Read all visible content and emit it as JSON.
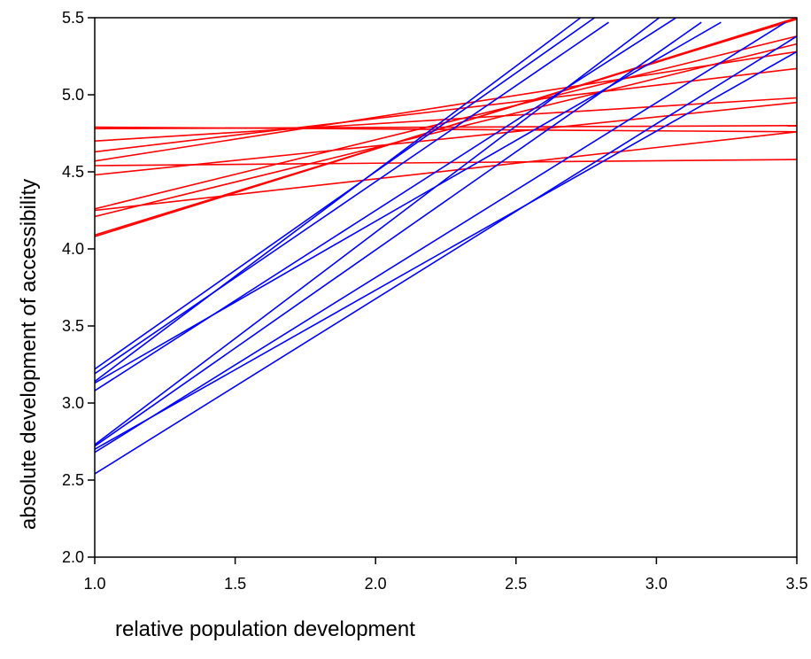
{
  "chart_data": {
    "type": "line",
    "title": "",
    "xlabel": "relative population development",
    "ylabel": "absolute development of accessibility",
    "xlim": [
      1.0,
      3.5
    ],
    "ylim": [
      2.0,
      5.5
    ],
    "x_ticks": [
      "1.0",
      "1.5",
      "2.0",
      "2.5",
      "3.0",
      "3.5"
    ],
    "y_ticks": [
      "2.0",
      "2.5",
      "3.0",
      "3.5",
      "4.0",
      "4.5",
      "5.0",
      "5.5"
    ],
    "grid": false,
    "legend": "none",
    "colors": {
      "red_group": "#ff0000",
      "blue_group": "#0000ff",
      "frame": "#000000"
    },
    "series": [
      {
        "color": "#ff0000",
        "x": [
          1.0,
          3.5
        ],
        "y": [
          4.79,
          4.76
        ]
      },
      {
        "color": "#ff0000",
        "x": [
          1.0,
          3.5
        ],
        "y": [
          4.78,
          4.8
        ]
      },
      {
        "color": "#ff0000",
        "x": [
          1.0,
          3.5
        ],
        "y": [
          4.7,
          4.98
        ]
      },
      {
        "color": "#ff0000",
        "x": [
          1.0,
          3.5
        ],
        "y": [
          4.63,
          5.17
        ]
      },
      {
        "color": "#ff0000",
        "x": [
          1.0,
          3.5
        ],
        "y": [
          4.57,
          5.28
        ]
      },
      {
        "color": "#ff0000",
        "x": [
          1.0,
          3.5
        ],
        "y": [
          4.54,
          4.58
        ]
      },
      {
        "color": "#ff0000",
        "x": [
          1.0,
          3.5
        ],
        "y": [
          4.48,
          4.95
        ]
      },
      {
        "color": "#ff0000",
        "x": [
          1.0,
          3.5
        ],
        "y": [
          4.26,
          5.38
        ]
      },
      {
        "color": "#ff0000",
        "x": [
          1.0,
          3.5
        ],
        "y": [
          4.25,
          4.76
        ]
      },
      {
        "color": "#ff0000",
        "x": [
          1.0,
          3.5
        ],
        "y": [
          4.21,
          5.33
        ]
      },
      {
        "color": "#ff0000",
        "x": [
          1.0,
          3.5
        ],
        "y": [
          4.09,
          5.49
        ]
      },
      {
        "color": "#ff0000",
        "x": [
          1.0,
          3.5
        ],
        "y": [
          4.08,
          5.5
        ]
      },
      {
        "color": "#0000ff",
        "x": [
          1.0,
          2.78
        ],
        "y": [
          3.22,
          5.5
        ]
      },
      {
        "color": "#0000ff",
        "x": [
          1.0,
          2.83
        ],
        "y": [
          3.19,
          5.47
        ]
      },
      {
        "color": "#0000ff",
        "x": [
          1.0,
          2.73
        ],
        "y": [
          3.14,
          5.5
        ]
      },
      {
        "color": "#0000ff",
        "x": [
          1.0,
          3.23
        ],
        "y": [
          3.13,
          5.47
        ]
      },
      {
        "color": "#0000ff",
        "x": [
          1.0,
          3.07
        ],
        "y": [
          3.08,
          5.5
        ]
      },
      {
        "color": "#0000ff",
        "x": [
          1.0,
          3.01
        ],
        "y": [
          2.73,
          5.5
        ]
      },
      {
        "color": "#0000ff",
        "x": [
          1.0,
          3.16
        ],
        "y": [
          2.72,
          5.47
        ]
      },
      {
        "color": "#0000ff",
        "x": [
          1.0,
          3.46
        ],
        "y": [
          2.68,
          5.47
        ]
      },
      {
        "color": "#0000ff",
        "x": [
          1.0,
          3.5
        ],
        "y": [
          2.54,
          5.38
        ]
      },
      {
        "color": "#0000ff",
        "x": [
          1.0,
          3.5
        ],
        "y": [
          2.7,
          5.28
        ]
      }
    ]
  }
}
